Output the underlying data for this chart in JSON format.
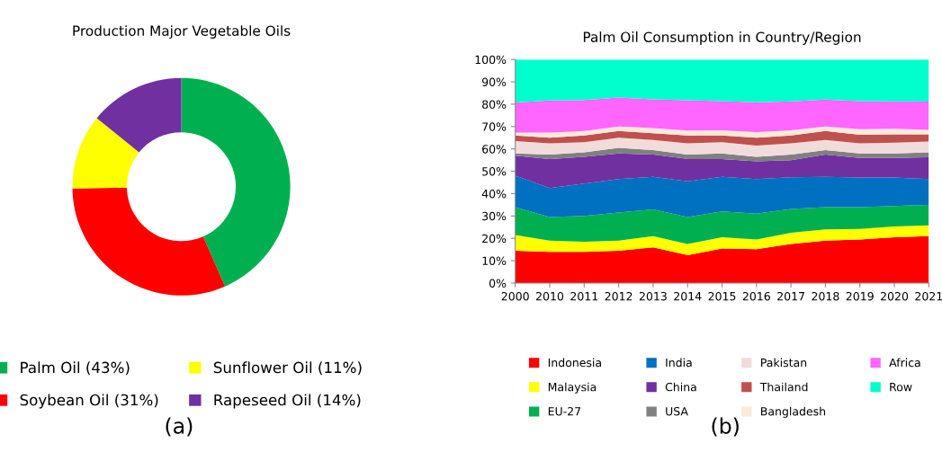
{
  "chart_data": [
    {
      "type": "donut",
      "title": "Production Major Vegetable Oils",
      "categories": [
        "Palm Oil (43%)",
        "Soybean Oil (31%)",
        "Sunflower Oil (11%)",
        "Rapeseed Oil (14%)"
      ],
      "values": [
        43,
        31,
        11,
        14
      ],
      "colors": [
        "#00b050",
        "#ff0000",
        "#ffff00",
        "#7030a0"
      ],
      "legend": "bottom",
      "annotations": [
        "(a)"
      ]
    },
    {
      "type": "area",
      "stacked": true,
      "title": "Palm Oil Consumption in Country/Region",
      "categories": [
        "2000",
        "2010",
        "2011",
        "2012",
        "2013",
        "2014",
        "2015",
        "2016",
        "2017",
        "2018",
        "2019",
        "2020",
        "2021"
      ],
      "series": [
        {
          "name": "Indonesia",
          "color": "#ff0000",
          "values": [
            14.5,
            14,
            14,
            14.5,
            16,
            12.5,
            15.5,
            15.2,
            17.5,
            19,
            19.5,
            20.5,
            21
          ]
        },
        {
          "name": "Malaysia",
          "color": "#ffff00",
          "values": [
            7,
            5,
            4.5,
            4.5,
            5,
            5,
            5,
            4.3,
            5,
            5,
            4.7,
            4.8,
            4.8
          ]
        },
        {
          "name": "EU-27",
          "color": "#00b050",
          "values": [
            12.5,
            10.5,
            11.5,
            12.5,
            12,
            12,
            11.5,
            11.5,
            10.7,
            10,
            9.8,
            9.2,
            9.2
          ]
        },
        {
          "name": "India",
          "color": "#0070c0",
          "values": [
            14,
            13,
            14.5,
            15,
            14.5,
            16,
            15.5,
            15.5,
            14.1,
            13.5,
            13.2,
            12.7,
            11.5
          ]
        },
        {
          "name": "China",
          "color": "#7030a0",
          "values": [
            9,
            13,
            12,
            11.5,
            10,
            10,
            8,
            8,
            7.7,
            10,
            8.8,
            8.8,
            9.8
          ]
        },
        {
          "name": "USA",
          "color": "#808080",
          "values": [
            1,
            2,
            2,
            2.5,
            2,
            2,
            2.5,
            2,
            2.5,
            2,
            2,
            2,
            2.2
          ]
        },
        {
          "name": "Pakistan",
          "color": "#f2dcdb",
          "values": [
            5.5,
            5,
            4.5,
            4.5,
            4.5,
            5,
            5,
            5,
            5,
            4.5,
            4.5,
            4.8,
            4.8
          ]
        },
        {
          "name": "Thailand",
          "color": "#c0504d",
          "values": [
            2.5,
            2.5,
            3,
            3,
            3,
            3.5,
            3,
            3.5,
            3.5,
            4,
            3.8,
            3.7,
            3.2
          ]
        },
        {
          "name": "Bangladesh",
          "color": "#fde9d9",
          "values": [
            1.3,
            2.3,
            2,
            2,
            2.3,
            2.2,
            2.3,
            2.5,
            2.3,
            2,
            2.5,
            2.5,
            2
          ]
        },
        {
          "name": "Africa",
          "color": "#ff66ff",
          "values": [
            13.5,
            14.4,
            13.9,
            13,
            12.9,
            13.6,
            13.1,
            13.4,
            13,
            12.1,
            12.6,
            12.3,
            12.7
          ]
        },
        {
          "name": "Row",
          "color": "#00ffcc",
          "values": [
            19.2,
            18.3,
            18.1,
            17,
            17.8,
            18.2,
            18.6,
            19.1,
            18.7,
            17.9,
            18.6,
            18.7,
            18.8
          ]
        }
      ],
      "ylim": [
        0,
        100
      ],
      "yticks": [
        {
          "value": 0,
          "label": "0%"
        },
        {
          "value": 10,
          "label": "10%"
        },
        {
          "value": 20,
          "label": "20%"
        },
        {
          "value": 30,
          "label": "30%"
        },
        {
          "value": 40,
          "label": "40%"
        },
        {
          "value": 50,
          "label": "50%"
        },
        {
          "value": 60,
          "label": "60%"
        },
        {
          "value": 70,
          "label": "70%"
        },
        {
          "value": 80,
          "label": "80%"
        },
        {
          "value": 90,
          "label": "90%"
        },
        {
          "value": 100,
          "label": "100%"
        }
      ],
      "grid": false,
      "legend": "bottom",
      "annotations": [
        "(b)"
      ]
    }
  ]
}
